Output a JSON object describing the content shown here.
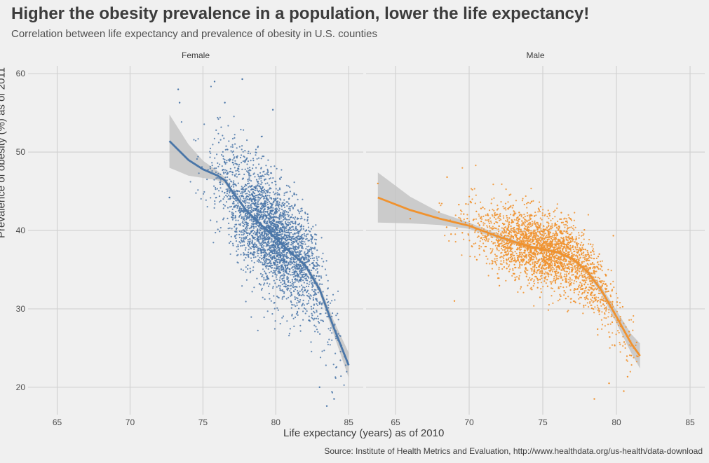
{
  "title": "Higher the obesity prevalence in a population, lower the life expectancy!",
  "subtitle": "Correlation between life expectancy and prevalence of obesity in U.S. counties",
  "source": "Source: Institute of Health Metrics and Evaluation, http://www.healthdata.org/us-health/data-download",
  "colors": {
    "female": "#4a76a8",
    "male": "#f0922e",
    "band": "#c4c4c4",
    "grid": "#d2d2d2",
    "background": "#f0f0f0"
  },
  "chart_data": {
    "type": "scatter",
    "title": "Higher the obesity prevalence in a population, lower the life expectancy!",
    "subtitle": "Correlation between life expectancy and prevalence of obesity in U.S. counties",
    "xlabel": "Life expectancy (years) as of 2010",
    "ylabel": "Prevalence of obesity (%) as of 2011",
    "xlim": [
      63,
      86
    ],
    "ylim": [
      16.5,
      61
    ],
    "x_ticks": [
      65,
      70,
      75,
      80,
      85
    ],
    "y_ticks": [
      20,
      30,
      40,
      50,
      60
    ],
    "grid": true,
    "legend": "none",
    "panels": [
      {
        "name": "Female",
        "color": "#4a76a8",
        "x_range": [
          72.7,
          85
        ],
        "point_cloud": {
          "center_x": 79.8,
          "center_y": 38.5,
          "sd_x": 1.8,
          "sd_y": 4.6,
          "approx_count": 3100
        },
        "outliers": [
          [
            73.3,
            58.0
          ],
          [
            75.8,
            59.0
          ],
          [
            77.7,
            59.3
          ],
          [
            79.8,
            55.4
          ],
          [
            76.5,
            56.3
          ],
          [
            73.4,
            56.3
          ],
          [
            72.7,
            44.2
          ],
          [
            84.0,
            18.5
          ],
          [
            83.5,
            17.6
          ],
          [
            83.0,
            20.0
          ]
        ],
        "smooth": {
          "x": [
            72.7,
            74,
            75,
            76,
            76.5,
            77,
            78,
            79,
            80,
            81,
            82,
            83,
            84,
            85
          ],
          "y": [
            51.4,
            49.0,
            47.8,
            47.0,
            46.4,
            45.0,
            42.5,
            40.7,
            39.0,
            37.2,
            35.6,
            32.5,
            27.5,
            22.8
          ],
          "se": [
            3.4,
            2.0,
            1.1,
            0.6,
            0.4,
            0.3,
            0.25,
            0.2,
            0.2,
            0.2,
            0.3,
            0.5,
            0.9,
            1.6
          ]
        }
      },
      {
        "name": "Male",
        "color": "#f0922e",
        "x_range": [
          63.8,
          81.6
        ],
        "point_cloud": {
          "center_x": 75.2,
          "center_y": 37.8,
          "sd_x": 2.4,
          "sd_y": 3.0,
          "approx_count": 3100
        },
        "outliers": [
          [
            63.8,
            46.0
          ],
          [
            66.0,
            41.5
          ],
          [
            69.0,
            31.0
          ],
          [
            78.5,
            18.5
          ],
          [
            80.5,
            19.5
          ],
          [
            79.5,
            20.5
          ],
          [
            68.5,
            46.8
          ]
        ],
        "smooth": {
          "x": [
            63.8,
            66,
            68,
            70,
            72,
            74,
            76,
            77,
            78,
            79,
            80,
            81,
            81.6
          ],
          "y": [
            44.2,
            42.6,
            41.5,
            40.6,
            39.2,
            38.0,
            37.2,
            36.4,
            34.8,
            32.3,
            29.0,
            25.6,
            24.0
          ],
          "se": [
            3.2,
            1.7,
            0.8,
            0.4,
            0.3,
            0.2,
            0.2,
            0.2,
            0.3,
            0.5,
            0.8,
            1.2,
            1.6
          ]
        }
      }
    ]
  }
}
